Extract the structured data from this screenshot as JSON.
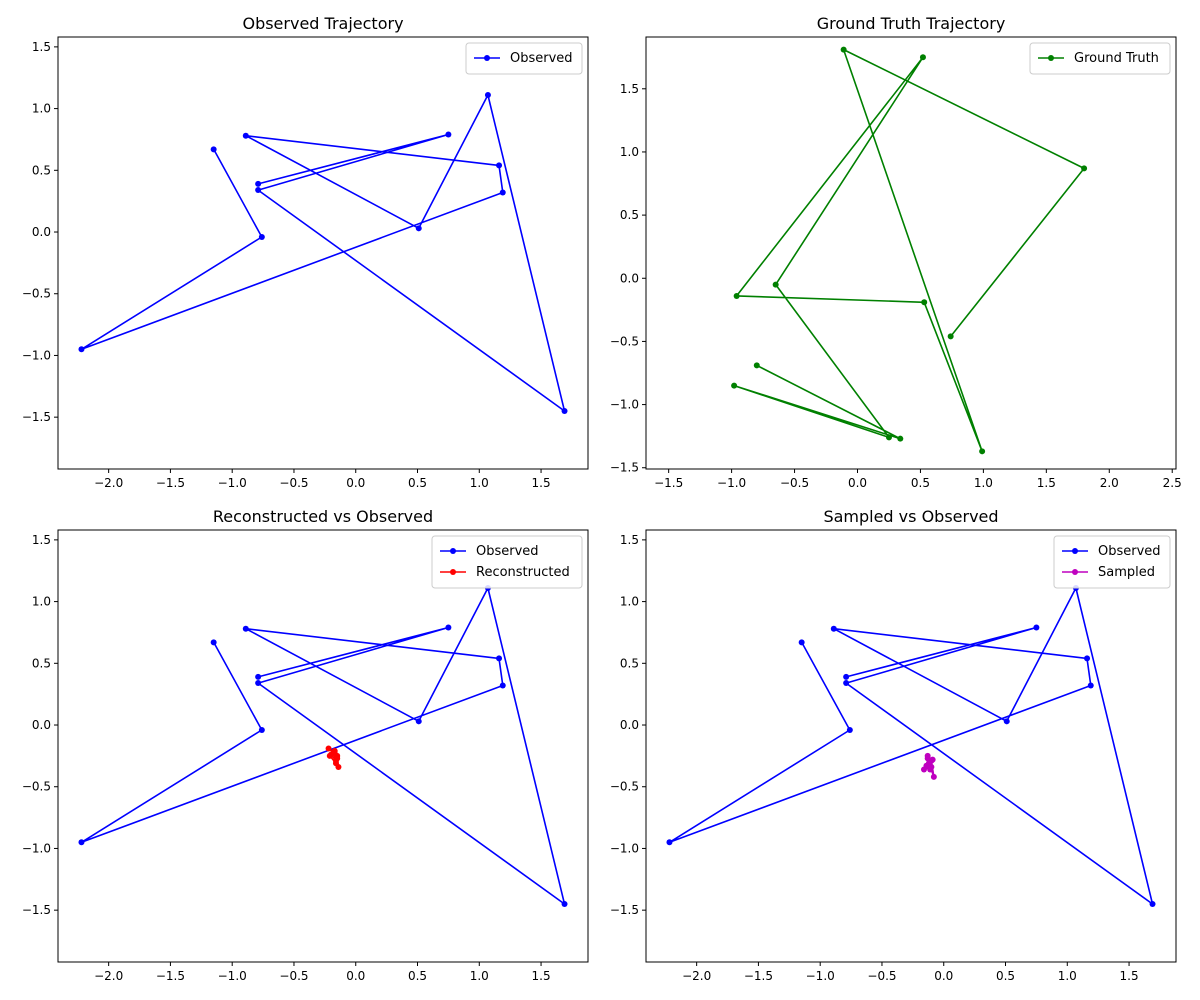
{
  "chart_data": [
    {
      "type": "line",
      "title": "Observed Trajectory",
      "xlabel": "",
      "ylabel": "",
      "xlim": [
        -2.41,
        1.88
      ],
      "ylim": [
        -1.92,
        1.58
      ],
      "xticks": [
        -2.0,
        -1.5,
        -1.0,
        -0.5,
        0.0,
        0.5,
        1.0,
        1.5
      ],
      "yticks": [
        -1.5,
        -1.0,
        -0.5,
        0.0,
        0.5,
        1.0,
        1.5
      ],
      "legend": "top-right",
      "series": [
        {
          "name": "Observed",
          "color": "#0000ff",
          "points": [
            [
              -1.15,
              0.67
            ],
            [
              -0.76,
              -0.04
            ],
            [
              -2.22,
              -0.95
            ],
            [
              1.19,
              0.32
            ],
            [
              1.16,
              0.54
            ],
            [
              -0.89,
              0.78
            ],
            [
              0.51,
              0.03
            ],
            [
              1.07,
              1.11
            ],
            [
              1.69,
              -1.45
            ],
            [
              -0.79,
              0.34
            ],
            [
              0.75,
              0.79
            ],
            [
              -0.79,
              0.39
            ]
          ]
        }
      ]
    },
    {
      "type": "line",
      "title": "Ground Truth Trajectory",
      "xlabel": "",
      "ylabel": "",
      "xlim": [
        -1.68,
        2.53
      ],
      "ylim": [
        -1.51,
        1.91
      ],
      "xticks": [
        -1.5,
        -1.0,
        -0.5,
        0.0,
        0.5,
        1.0,
        1.5,
        2.0,
        2.5
      ],
      "yticks": [
        -1.5,
        -1.0,
        -0.5,
        0.0,
        0.5,
        1.0,
        1.5
      ],
      "legend": "top-right",
      "series": [
        {
          "name": "Ground Truth",
          "color": "#008000",
          "points": [
            [
              0.74,
              -0.46
            ],
            [
              1.8,
              0.87
            ],
            [
              -0.11,
              1.81
            ],
            [
              0.99,
              -1.37
            ],
            [
              0.53,
              -0.19
            ],
            [
              -0.96,
              -0.14
            ],
            [
              0.52,
              1.75
            ],
            [
              -0.65,
              -0.05
            ],
            [
              0.25,
              -1.26
            ],
            [
              -0.98,
              -0.85
            ],
            [
              0.34,
              -1.27
            ],
            [
              -0.8,
              -0.69
            ]
          ]
        }
      ]
    },
    {
      "type": "line",
      "title": "Reconstructed vs Observed",
      "xlabel": "",
      "ylabel": "",
      "xlim": [
        -2.41,
        1.88
      ],
      "ylim": [
        -1.92,
        1.58
      ],
      "xticks": [
        -2.0,
        -1.5,
        -1.0,
        -0.5,
        0.0,
        0.5,
        1.0,
        1.5
      ],
      "yticks": [
        -1.5,
        -1.0,
        -0.5,
        0.0,
        0.5,
        1.0,
        1.5
      ],
      "legend": "top-right",
      "series": [
        {
          "name": "Observed",
          "color": "#0000ff",
          "points": [
            [
              -1.15,
              0.67
            ],
            [
              -0.76,
              -0.04
            ],
            [
              -2.22,
              -0.95
            ],
            [
              1.19,
              0.32
            ],
            [
              1.16,
              0.54
            ],
            [
              -0.89,
              0.78
            ],
            [
              0.51,
              0.03
            ],
            [
              1.07,
              1.11
            ],
            [
              1.69,
              -1.45
            ],
            [
              -0.79,
              0.34
            ],
            [
              0.75,
              0.79
            ],
            [
              -0.79,
              0.39
            ]
          ]
        },
        {
          "name": "Reconstructed",
          "color": "#ff0000",
          "points": [
            [
              -0.22,
              -0.19
            ],
            [
              -0.17,
              -0.23
            ],
            [
              -0.15,
              -0.27
            ],
            [
              -0.14,
              -0.34
            ],
            [
              -0.16,
              -0.29
            ],
            [
              -0.2,
              -0.24
            ],
            [
              -0.17,
              -0.21
            ],
            [
              -0.21,
              -0.25
            ],
            [
              -0.16,
              -0.31
            ],
            [
              -0.18,
              -0.22
            ],
            [
              -0.15,
              -0.25
            ]
          ]
        }
      ]
    },
    {
      "type": "line",
      "title": "Sampled vs Observed",
      "xlabel": "",
      "ylabel": "",
      "xlim": [
        -2.41,
        1.88
      ],
      "ylim": [
        -1.92,
        1.58
      ],
      "xticks": [
        -2.0,
        -1.5,
        -1.0,
        -0.5,
        0.0,
        0.5,
        1.0,
        1.5
      ],
      "yticks": [
        -1.5,
        -1.0,
        -0.5,
        0.0,
        0.5,
        1.0,
        1.5
      ],
      "legend": "top-right",
      "series": [
        {
          "name": "Observed",
          "color": "#0000ff",
          "points": [
            [
              -1.15,
              0.67
            ],
            [
              -0.76,
              -0.04
            ],
            [
              -2.22,
              -0.95
            ],
            [
              1.19,
              0.32
            ],
            [
              1.16,
              0.54
            ],
            [
              -0.89,
              0.78
            ],
            [
              0.51,
              0.03
            ],
            [
              1.07,
              1.11
            ],
            [
              1.69,
              -1.45
            ],
            [
              -0.79,
              0.34
            ],
            [
              0.75,
              0.79
            ],
            [
              -0.79,
              0.39
            ]
          ]
        },
        {
          "name": "Sampled",
          "color": "#bf00bf",
          "points": [
            [
              -0.13,
              -0.25
            ],
            [
              -0.1,
              -0.29
            ],
            [
              -0.08,
              -0.42
            ],
            [
              -0.12,
              -0.31
            ],
            [
              -0.16,
              -0.36
            ],
            [
              -0.1,
              -0.34
            ],
            [
              -0.13,
              -0.27
            ],
            [
              -0.09,
              -0.28
            ],
            [
              -0.14,
              -0.33
            ],
            [
              -0.11,
              -0.36
            ]
          ]
        }
      ]
    }
  ]
}
